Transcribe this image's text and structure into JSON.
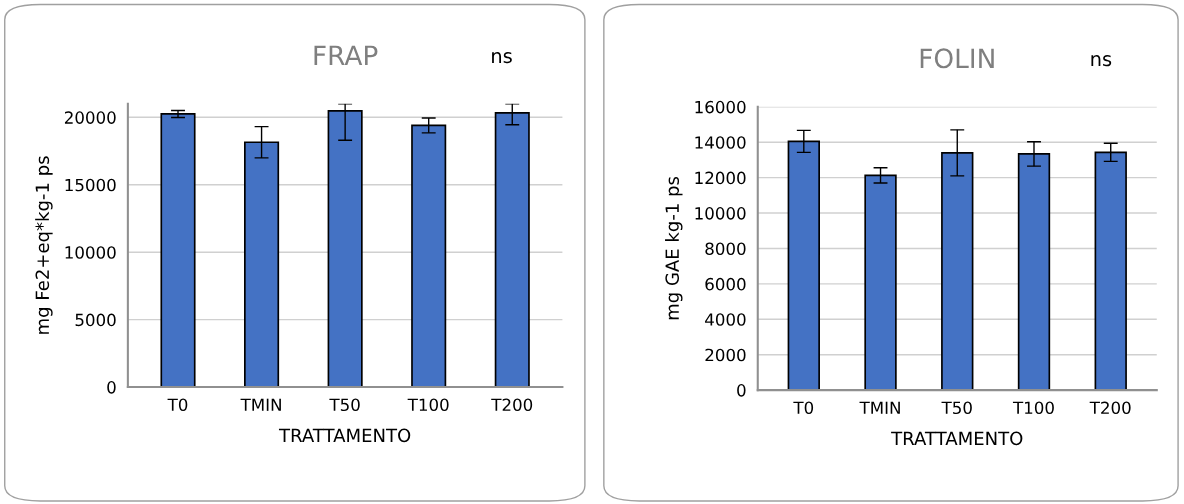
{
  "chart_data": [
    {
      "type": "bar",
      "title": "FRAP",
      "xlabel": "TRATTAMENTO",
      "ylabel": "mg Fe2+eq*kg-1 ps",
      "annotations": [
        "ns"
      ],
      "categories": [
        "T0",
        "TMIN",
        "T50",
        "T100",
        "T200"
      ],
      "values": [
        20250,
        18150,
        20475,
        19400,
        20325
      ],
      "color": "#4472c4",
      "errors": [
        260,
        1160,
        [
          18300,
          21000
        ],
        550,
        [
          19450,
          21000
        ]
      ],
      "ylim": [
        0,
        21000
      ],
      "yticks": [
        0,
        5000,
        10000,
        15000,
        20000
      ],
      "grid": "y"
    },
    {
      "type": "bar",
      "title": "FOLIN",
      "xlabel": "TRATTAMENTO",
      "ylabel": "mg GAE kg-1 ps",
      "annotations": [
        "ns"
      ],
      "categories": [
        "T0",
        "TMIN",
        "T50",
        "T100",
        "T200"
      ],
      "values": [
        14050,
        12130,
        13400,
        13340,
        13430
      ],
      "color": "#4472c4",
      "errors": [
        620,
        430,
        1300,
        690,
        510
      ],
      "ylim": [
        0,
        16000
      ],
      "yticks": [
        0,
        2000,
        4000,
        6000,
        8000,
        10000,
        12000,
        14000,
        16000
      ],
      "grid": "y"
    }
  ]
}
